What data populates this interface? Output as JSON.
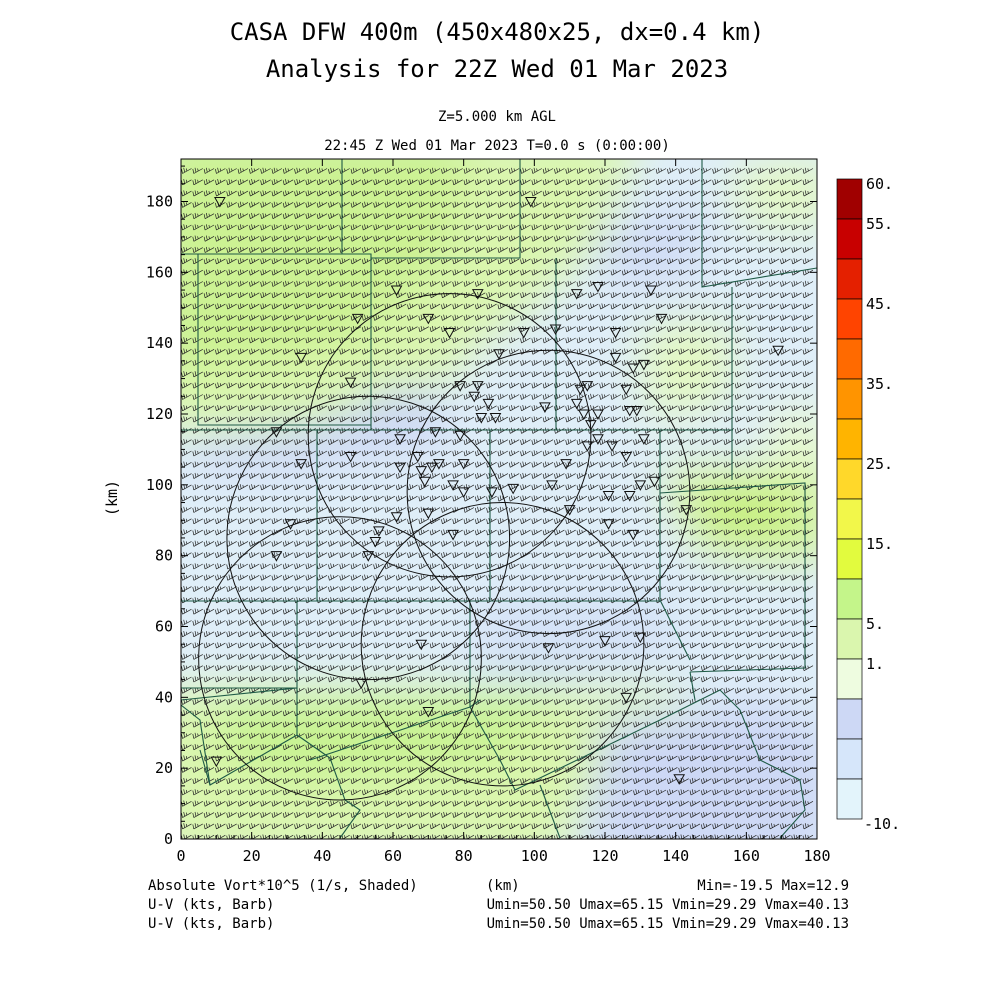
{
  "header": {
    "title_line1": "CASA DFW 400m (450x480x25, dx=0.4 km)",
    "title_line2": "Analysis for 22Z Wed 01 Mar 2023",
    "level": "Z=5.000 km AGL",
    "valid_time": "22:45 Z Wed 01 Mar 2023    T=0.0 s (0:00:00)"
  },
  "footer": {
    "field_label": "Absolute Vort*10^5 (1/s, Shaded)",
    "xunit": "(km)",
    "minmax": "Min=-19.5 Max=12.9",
    "barb_label_1": "U-V (kts, Barb)",
    "barb_stats_1": "Umin=50.50 Umax=65.15 Vmin=29.29 Vmax=40.13",
    "barb_label_2": "U-V (kts, Barb)",
    "barb_stats_2": "Umin=50.50 Umax=65.15 Vmin=29.29 Vmax=40.13"
  },
  "colors": {
    "light_green": "#d9fa9e",
    "pale_green": "#eefcd2",
    "pale_blue": "#cfdaf5",
    "very_pale_blue": "#dcecfa",
    "green_max": "#c5ee8f",
    "county_line": "#1e5a46"
  },
  "chart_data": {
    "type": "heatmap",
    "xlabel": "(km)",
    "ylabel": "(km)",
    "xlim": [
      0,
      180
    ],
    "ylim": [
      0,
      192
    ],
    "xticks": [
      "0",
      "20",
      "40",
      "60",
      "80",
      "100",
      "120",
      "140",
      "160",
      "180"
    ],
    "yticks": [
      "0",
      "20",
      "40",
      "60",
      "80",
      "100",
      "120",
      "140",
      "160",
      "180"
    ],
    "colorbar": {
      "labels": [
        "60.",
        "55.",
        "45.",
        "35.",
        "25.",
        "15.",
        "5.",
        "1.",
        "-10."
      ],
      "colors": [
        "#a00000",
        "#c80000",
        "#e42000",
        "#ff4400",
        "#ff6a00",
        "#ff9400",
        "#ffb400",
        "#ffd82a",
        "#f2f74a",
        "#e2fb3e",
        "#c4f58a",
        "#daf6ae",
        "#eefce0",
        "#cdd8f5",
        "#d6e6fa",
        "#e3f4fb"
      ]
    },
    "radar_rings": [
      {
        "center": [
          76,
          114
        ],
        "radius": 40
      },
      {
        "center": [
          104,
          98
        ],
        "radius": 40
      },
      {
        "center": [
          53,
          85
        ],
        "radius": 40
      },
      {
        "center": [
          45,
          51
        ],
        "radius": 40
      },
      {
        "center": [
          91,
          55
        ],
        "radius": 40
      }
    ],
    "stations": [
      [
        11,
        180
      ],
      [
        99,
        180
      ],
      [
        61,
        155
      ],
      [
        84,
        154
      ],
      [
        133,
        155
      ],
      [
        112,
        154
      ],
      [
        118,
        156
      ],
      [
        50,
        147
      ],
      [
        70,
        147
      ],
      [
        106,
        144
      ],
      [
        97,
        143
      ],
      [
        136,
        147
      ],
      [
        123,
        143
      ],
      [
        34,
        136
      ],
      [
        90,
        137
      ],
      [
        76,
        143
      ],
      [
        123,
        136
      ],
      [
        128,
        133
      ],
      [
        131,
        134
      ],
      [
        48,
        129
      ],
      [
        79,
        128
      ],
      [
        84,
        128
      ],
      [
        113,
        127
      ],
      [
        115,
        128
      ],
      [
        126,
        127
      ],
      [
        103,
        122
      ],
      [
        87,
        123
      ],
      [
        83,
        125
      ],
      [
        112,
        123
      ],
      [
        127,
        121
      ],
      [
        129,
        121
      ],
      [
        85,
        119
      ],
      [
        89,
        119
      ],
      [
        114,
        120
      ],
      [
        116,
        117
      ],
      [
        118,
        120
      ],
      [
        27,
        115
      ],
      [
        62,
        113
      ],
      [
        72,
        115
      ],
      [
        79,
        114
      ],
      [
        115,
        111
      ],
      [
        118,
        113
      ],
      [
        122,
        111
      ],
      [
        131,
        113
      ],
      [
        67,
        108
      ],
      [
        71,
        105
      ],
      [
        34,
        106
      ],
      [
        48,
        108
      ],
      [
        62,
        105
      ],
      [
        68,
        104
      ],
      [
        73,
        106
      ],
      [
        80,
        106
      ],
      [
        109,
        106
      ],
      [
        126,
        108
      ],
      [
        69,
        101
      ],
      [
        77,
        100
      ],
      [
        80,
        98
      ],
      [
        88,
        98
      ],
      [
        94,
        99
      ],
      [
        105,
        100
      ],
      [
        121,
        97
      ],
      [
        127,
        97
      ],
      [
        130,
        100
      ],
      [
        134,
        101
      ],
      [
        31,
        89
      ],
      [
        56,
        87
      ],
      [
        61,
        91
      ],
      [
        70,
        92
      ],
      [
        110,
        93
      ],
      [
        121,
        89
      ],
      [
        128,
        86
      ],
      [
        143,
        93
      ],
      [
        27,
        80
      ],
      [
        55,
        84
      ],
      [
        53,
        80
      ],
      [
        77,
        86
      ],
      [
        68,
        55
      ],
      [
        104,
        54
      ],
      [
        120,
        56
      ],
      [
        130,
        57
      ],
      [
        51,
        44
      ],
      [
        70,
        36
      ],
      [
        126,
        40
      ],
      [
        10,
        22
      ],
      [
        141,
        17
      ],
      [
        169,
        138
      ]
    ]
  }
}
